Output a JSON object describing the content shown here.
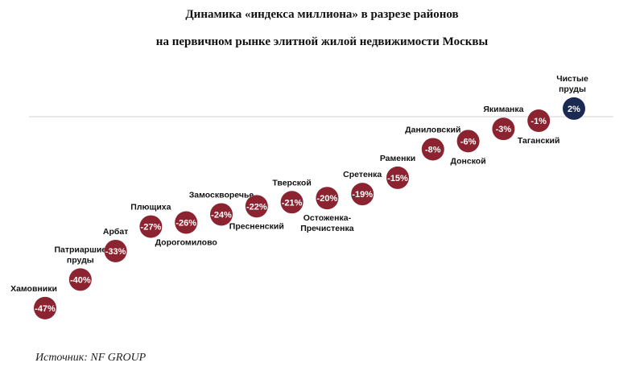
{
  "title_line1": "Динамика «индекса миллиона» в разрезе районов",
  "title_line2": "на первичном рынке элитной жилой недвижимости Москвы",
  "source": "Источник: NF GROUP",
  "colors": {
    "negative": "#8b2330",
    "positive": "#1b2a52",
    "baseline": "#d0d0d0"
  },
  "chart_data": {
    "type": "scatter",
    "title": "Динамика «индекса миллиона» в разрезе районов на первичном рынке элитной жилой недвижимости Москвы",
    "unit": "%",
    "categories": [
      "Хамовники",
      "Патриаршие пруды",
      "Арбат",
      "Плющиха",
      "Дорогомилово",
      "Замоскворечье",
      "Пресненский",
      "Тверской",
      "Остоженка-Пречистенка",
      "Сретенка",
      "Раменки",
      "Даниловский",
      "Донской",
      "Якиманка",
      "Таганский",
      "Чистые пруды"
    ],
    "labels": [
      [
        "Хамовники"
      ],
      [
        "Патриаршие",
        "пруды"
      ],
      [
        "Арбат"
      ],
      [
        "Плющиха"
      ],
      [
        "Дорогомилово"
      ],
      [
        "Замоскворечье"
      ],
      [
        "Пресненский"
      ],
      [
        "Тверской"
      ],
      [
        "Остоженка-",
        "Пречистенка"
      ],
      [
        "Сретенка"
      ],
      [
        "Раменки"
      ],
      [
        "Даниловский"
      ],
      [
        "Донской"
      ],
      [
        "Якиманка"
      ],
      [
        "Таганский"
      ],
      [
        "Чистые",
        "пруды"
      ]
    ],
    "label_position": [
      "above",
      "above",
      "above",
      "above",
      "below",
      "above",
      "below",
      "above",
      "below",
      "above",
      "above",
      "above",
      "below",
      "above",
      "below",
      "above"
    ],
    "values": [
      -47,
      -40,
      -33,
      -27,
      -26,
      -24,
      -22,
      -21,
      -20,
      -19,
      -15,
      -8,
      -6,
      -3,
      -1,
      2
    ],
    "value_labels": [
      "-47%",
      "-40%",
      "-33%",
      "-27%",
      "-26%",
      "-24%",
      "-22%",
      "-21%",
      "-20%",
      "-19%",
      "-15%",
      "-8%",
      "-6%",
      "-3%",
      "-1%",
      "2%"
    ],
    "baseline": 0
  }
}
